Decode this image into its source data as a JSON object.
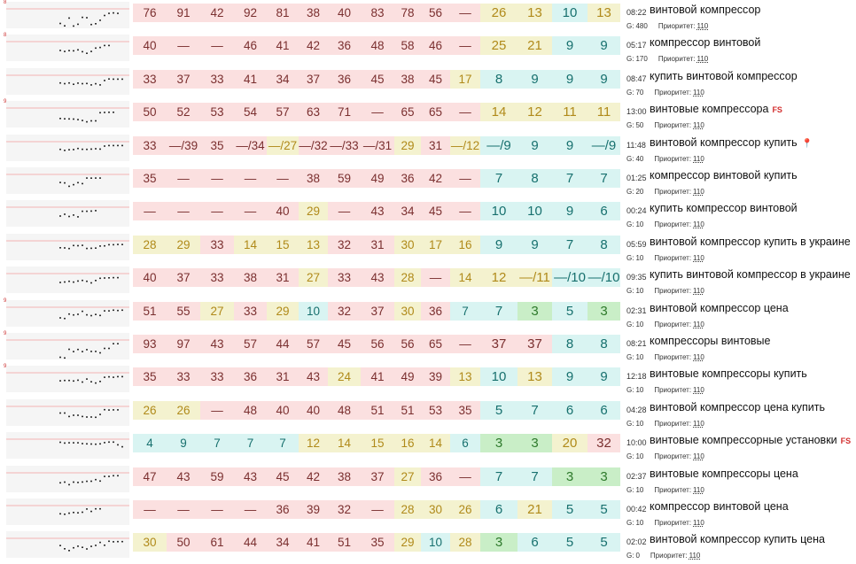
{
  "meta_labels": {
    "g_prefix": "G:",
    "priority_label": "Приоритет:"
  },
  "colors": {
    "red_bg": "#fbe0e0",
    "yellow_bg": "#f4f2cf",
    "cyan_bg": "#d9f4f2",
    "green_bg": "#c9eec7",
    "fs_badge": "#d32f2f"
  },
  "rows": [
    {
      "spark_label": "8",
      "time": "08:22",
      "keyword": "винтовой компрессор",
      "fs": "",
      "pin": false,
      "g": "480",
      "priority": "110",
      "cells": [
        [
          "76",
          "r"
        ],
        [
          "91",
          "r"
        ],
        [
          "42",
          "r"
        ],
        [
          "92",
          "r"
        ],
        [
          "81",
          "r"
        ],
        [
          "38",
          "r"
        ],
        [
          "40",
          "r"
        ],
        [
          "83",
          "r"
        ],
        [
          "78",
          "r"
        ],
        [
          "56",
          "r"
        ],
        [
          "—",
          "r"
        ],
        [
          "26",
          "y"
        ],
        [
          "13",
          "y"
        ],
        [
          "10",
          "c"
        ],
        [
          "13",
          "y"
        ]
      ]
    },
    {
      "spark_label": "8",
      "time": "05:17",
      "keyword": "компрессор винтовой",
      "fs": "",
      "pin": false,
      "g": "170",
      "priority": "110",
      "cells": [
        [
          "40",
          "r"
        ],
        [
          "—",
          "r"
        ],
        [
          "—",
          "r"
        ],
        [
          "46",
          "r"
        ],
        [
          "41",
          "r"
        ],
        [
          "42",
          "r"
        ],
        [
          "36",
          "r"
        ],
        [
          "48",
          "r"
        ],
        [
          "58",
          "r"
        ],
        [
          "46",
          "r"
        ],
        [
          "—",
          "r"
        ],
        [
          "25",
          "y"
        ],
        [
          "21",
          "y"
        ],
        [
          "9",
          "c"
        ],
        [
          "9",
          "c"
        ]
      ]
    },
    {
      "spark_label": "",
      "time": "08:47",
      "keyword": "купить винтовой компрессор",
      "fs": "",
      "pin": false,
      "g": "70",
      "priority": "110",
      "cells": [
        [
          "33",
          "r"
        ],
        [
          "37",
          "r"
        ],
        [
          "33",
          "r"
        ],
        [
          "41",
          "r"
        ],
        [
          "34",
          "r"
        ],
        [
          "37",
          "r"
        ],
        [
          "36",
          "r"
        ],
        [
          "45",
          "r"
        ],
        [
          "38",
          "r"
        ],
        [
          "45",
          "r"
        ],
        [
          "17",
          "y"
        ],
        [
          "8",
          "c"
        ],
        [
          "9",
          "c"
        ],
        [
          "9",
          "c"
        ],
        [
          "9",
          "c"
        ]
      ]
    },
    {
      "spark_label": "9",
      "time": "13:00",
      "keyword": "винтовые компрессора",
      "fs": "FS",
      "pin": false,
      "g": "50",
      "priority": "110",
      "cells": [
        [
          "50",
          "r"
        ],
        [
          "52",
          "r"
        ],
        [
          "53",
          "r"
        ],
        [
          "54",
          "r"
        ],
        [
          "57",
          "r"
        ],
        [
          "63",
          "r"
        ],
        [
          "71",
          "r"
        ],
        [
          "—",
          "r"
        ],
        [
          "65",
          "r"
        ],
        [
          "65",
          "r"
        ],
        [
          "—",
          "r"
        ],
        [
          "14",
          "y"
        ],
        [
          "12",
          "y"
        ],
        [
          "11",
          "y"
        ],
        [
          "11",
          "y"
        ]
      ]
    },
    {
      "spark_label": "",
      "time": "11:48",
      "keyword": "винтовой компрессор купить",
      "fs": "",
      "pin": true,
      "g": "40",
      "priority": "110",
      "cells": [
        [
          "33",
          "r"
        ],
        [
          "—/39",
          "r"
        ],
        [
          "35",
          "r"
        ],
        [
          "—/34",
          "r"
        ],
        [
          "—/27",
          "y"
        ],
        [
          "—/32",
          "r"
        ],
        [
          "—/33",
          "r"
        ],
        [
          "—/31",
          "r"
        ],
        [
          "29",
          "y"
        ],
        [
          "31",
          "r"
        ],
        [
          "—/12",
          "y"
        ],
        [
          "—/9",
          "c"
        ],
        [
          "9",
          "c"
        ],
        [
          "9",
          "c"
        ],
        [
          "—/9",
          "c"
        ]
      ]
    },
    {
      "spark_label": "",
      "time": "01:25",
      "keyword": "компрессор винтовой купить",
      "fs": "",
      "pin": false,
      "g": "20",
      "priority": "110",
      "cells": [
        [
          "35",
          "r"
        ],
        [
          "—",
          "r"
        ],
        [
          "—",
          "r"
        ],
        [
          "—",
          "r"
        ],
        [
          "—",
          "r"
        ],
        [
          "38",
          "r"
        ],
        [
          "59",
          "r"
        ],
        [
          "49",
          "r"
        ],
        [
          "36",
          "r"
        ],
        [
          "42",
          "r"
        ],
        [
          "—",
          "r"
        ],
        [
          "7",
          "c"
        ],
        [
          "8",
          "c"
        ],
        [
          "7",
          "c"
        ],
        [
          "7",
          "c"
        ]
      ]
    },
    {
      "spark_label": "",
      "time": "00:24",
      "keyword": "купить компрессор винтовой",
      "fs": "",
      "pin": false,
      "g": "10",
      "priority": "110",
      "cells": [
        [
          "—",
          "r"
        ],
        [
          "—",
          "r"
        ],
        [
          "—",
          "r"
        ],
        [
          "—",
          "r"
        ],
        [
          "40",
          "r"
        ],
        [
          "29",
          "y"
        ],
        [
          "—",
          "r"
        ],
        [
          "43",
          "r"
        ],
        [
          "34",
          "r"
        ],
        [
          "45",
          "r"
        ],
        [
          "—",
          "r"
        ],
        [
          "10",
          "c"
        ],
        [
          "10",
          "c"
        ],
        [
          "9",
          "c"
        ],
        [
          "6",
          "c"
        ]
      ]
    },
    {
      "spark_label": "",
      "time": "05:59",
      "keyword": "винтовой компрессор купить в украине",
      "fs": "",
      "pin": false,
      "g": "10",
      "priority": "110",
      "cells": [
        [
          "28",
          "y"
        ],
        [
          "29",
          "y"
        ],
        [
          "33",
          "r"
        ],
        [
          "14",
          "y"
        ],
        [
          "15",
          "y"
        ],
        [
          "13",
          "y"
        ],
        [
          "32",
          "r"
        ],
        [
          "31",
          "r"
        ],
        [
          "30",
          "y"
        ],
        [
          "17",
          "y"
        ],
        [
          "16",
          "y"
        ],
        [
          "9",
          "c"
        ],
        [
          "9",
          "c"
        ],
        [
          "7",
          "c"
        ],
        [
          "8",
          "c"
        ]
      ]
    },
    {
      "spark_label": "",
      "time": "09:35",
      "keyword": "купить винтовой компрессор в украине",
      "fs": "",
      "pin": true,
      "g": "10",
      "priority": "110",
      "cells": [
        [
          "40",
          "r"
        ],
        [
          "37",
          "r"
        ],
        [
          "33",
          "r"
        ],
        [
          "38",
          "r"
        ],
        [
          "31",
          "r"
        ],
        [
          "27",
          "y"
        ],
        [
          "33",
          "r"
        ],
        [
          "43",
          "r"
        ],
        [
          "28",
          "y"
        ],
        [
          "—",
          "r"
        ],
        [
          "14",
          "y"
        ],
        [
          "12",
          "y"
        ],
        [
          "—/11",
          "y"
        ],
        [
          "—/10",
          "c"
        ],
        [
          "—/10",
          "c"
        ]
      ]
    },
    {
      "spark_label": "9",
      "time": "02:31",
      "keyword": "винтовой компрессор цена",
      "fs": "",
      "pin": false,
      "g": "10",
      "priority": "110",
      "cells": [
        [
          "51",
          "r"
        ],
        [
          "55",
          "r"
        ],
        [
          "27",
          "y"
        ],
        [
          "33",
          "r"
        ],
        [
          "29",
          "y"
        ],
        [
          "10",
          "c"
        ],
        [
          "32",
          "r"
        ],
        [
          "37",
          "r"
        ],
        [
          "30",
          "y"
        ],
        [
          "36",
          "r"
        ],
        [
          "7",
          "c"
        ],
        [
          "7",
          "c"
        ],
        [
          "3",
          "g"
        ],
        [
          "5",
          "c"
        ],
        [
          "3",
          "g"
        ]
      ]
    },
    {
      "spark_label": "9",
      "time": "08:21",
      "keyword": "компрессоры винтовые",
      "fs": "",
      "pin": false,
      "g": "10",
      "priority": "110",
      "cells": [
        [
          "93",
          "r"
        ],
        [
          "97",
          "r"
        ],
        [
          "43",
          "r"
        ],
        [
          "57",
          "r"
        ],
        [
          "44",
          "r"
        ],
        [
          "57",
          "r"
        ],
        [
          "45",
          "r"
        ],
        [
          "56",
          "r"
        ],
        [
          "56",
          "r"
        ],
        [
          "65",
          "r"
        ],
        [
          "—",
          "r"
        ],
        [
          "37",
          "r"
        ],
        [
          "37",
          "r"
        ],
        [
          "8",
          "c"
        ],
        [
          "8",
          "c"
        ]
      ]
    },
    {
      "spark_label": "9",
      "time": "12:18",
      "keyword": "винтовые компрессоры купить",
      "fs": "",
      "pin": false,
      "g": "10",
      "priority": "110",
      "cells": [
        [
          "35",
          "r"
        ],
        [
          "33",
          "r"
        ],
        [
          "33",
          "r"
        ],
        [
          "36",
          "r"
        ],
        [
          "31",
          "r"
        ],
        [
          "43",
          "r"
        ],
        [
          "24",
          "y"
        ],
        [
          "41",
          "r"
        ],
        [
          "49",
          "r"
        ],
        [
          "39",
          "r"
        ],
        [
          "13",
          "y"
        ],
        [
          "10",
          "c"
        ],
        [
          "13",
          "y"
        ],
        [
          "9",
          "c"
        ],
        [
          "9",
          "c"
        ]
      ]
    },
    {
      "spark_label": "",
      "time": "04:28",
      "keyword": "винтовой компрессор цена купить",
      "fs": "",
      "pin": false,
      "g": "10",
      "priority": "110",
      "cells": [
        [
          "26",
          "y"
        ],
        [
          "26",
          "y"
        ],
        [
          "—",
          "r"
        ],
        [
          "48",
          "r"
        ],
        [
          "40",
          "r"
        ],
        [
          "40",
          "r"
        ],
        [
          "48",
          "r"
        ],
        [
          "51",
          "r"
        ],
        [
          "51",
          "r"
        ],
        [
          "53",
          "r"
        ],
        [
          "35",
          "r"
        ],
        [
          "5",
          "c"
        ],
        [
          "7",
          "c"
        ],
        [
          "6",
          "c"
        ],
        [
          "6",
          "c"
        ]
      ]
    },
    {
      "spark_label": "",
      "time": "10:00",
      "keyword": "винтовые компрессорные установки",
      "fs": "FS",
      "pin": false,
      "g": "10",
      "priority": "110",
      "cells": [
        [
          "4",
          "c"
        ],
        [
          "9",
          "c"
        ],
        [
          "7",
          "c"
        ],
        [
          "7",
          "c"
        ],
        [
          "7",
          "c"
        ],
        [
          "12",
          "y"
        ],
        [
          "14",
          "y"
        ],
        [
          "15",
          "y"
        ],
        [
          "16",
          "y"
        ],
        [
          "14",
          "y"
        ],
        [
          "6",
          "c"
        ],
        [
          "3",
          "g"
        ],
        [
          "3",
          "g"
        ],
        [
          "20",
          "y"
        ],
        [
          "32",
          "r"
        ]
      ]
    },
    {
      "spark_label": "",
      "time": "02:37",
      "keyword": "винтовые компрессоры цена",
      "fs": "",
      "pin": false,
      "g": "10",
      "priority": "110",
      "cells": [
        [
          "47",
          "r"
        ],
        [
          "43",
          "r"
        ],
        [
          "59",
          "r"
        ],
        [
          "43",
          "r"
        ],
        [
          "45",
          "r"
        ],
        [
          "42",
          "r"
        ],
        [
          "38",
          "r"
        ],
        [
          "37",
          "r"
        ],
        [
          "27",
          "y"
        ],
        [
          "36",
          "r"
        ],
        [
          "—",
          "r"
        ],
        [
          "7",
          "c"
        ],
        [
          "7",
          "c"
        ],
        [
          "3",
          "g"
        ],
        [
          "3",
          "g"
        ]
      ]
    },
    {
      "spark_label": "",
      "time": "00:42",
      "keyword": "компрессор винтовой цена",
      "fs": "",
      "pin": false,
      "g": "10",
      "priority": "110",
      "cells": [
        [
          "—",
          "r"
        ],
        [
          "—",
          "r"
        ],
        [
          "—",
          "r"
        ],
        [
          "—",
          "r"
        ],
        [
          "36",
          "r"
        ],
        [
          "39",
          "r"
        ],
        [
          "32",
          "r"
        ],
        [
          "—",
          "r"
        ],
        [
          "28",
          "y"
        ],
        [
          "30",
          "y"
        ],
        [
          "26",
          "y"
        ],
        [
          "6",
          "c"
        ],
        [
          "21",
          "y"
        ],
        [
          "5",
          "c"
        ],
        [
          "5",
          "c"
        ]
      ]
    },
    {
      "spark_label": "",
      "time": "02:02",
      "keyword": "винтовой компрессор купить цена",
      "fs": "",
      "pin": false,
      "g": "0",
      "priority": "110",
      "cells": [
        [
          "30",
          "y"
        ],
        [
          "50",
          "r"
        ],
        [
          "61",
          "r"
        ],
        [
          "44",
          "r"
        ],
        [
          "34",
          "r"
        ],
        [
          "41",
          "r"
        ],
        [
          "51",
          "r"
        ],
        [
          "35",
          "r"
        ],
        [
          "29",
          "y"
        ],
        [
          "10",
          "c"
        ],
        [
          "28",
          "y"
        ],
        [
          "3",
          "g"
        ],
        [
          "6",
          "c"
        ],
        [
          "5",
          "c"
        ],
        [
          "5",
          "c"
        ]
      ]
    }
  ]
}
